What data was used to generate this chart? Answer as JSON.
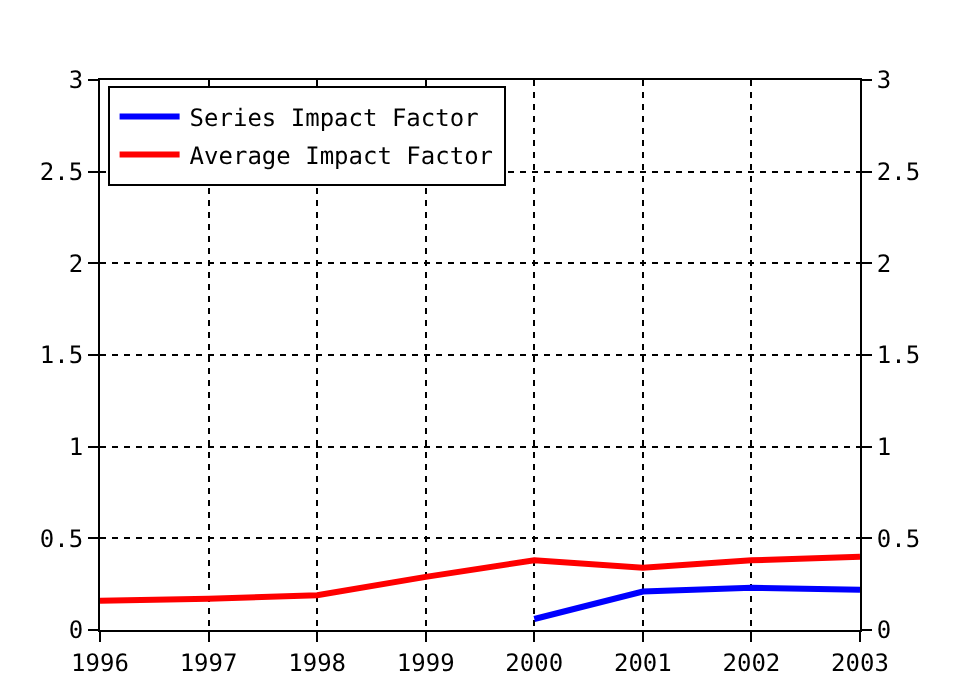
{
  "chart_data": {
    "type": "line",
    "x": [
      1996,
      1997,
      1998,
      1999,
      2000,
      2001,
      2002,
      2003
    ],
    "series": [
      {
        "name": "Series Impact Factor",
        "color": "#0000ff",
        "values": [
          null,
          null,
          null,
          null,
          0.06,
          0.21,
          0.23,
          0.22
        ]
      },
      {
        "name": "Average Impact Factor",
        "color": "#ff0000",
        "values": [
          0.16,
          0.17,
          0.19,
          0.29,
          0.38,
          0.34,
          0.38,
          0.4
        ]
      }
    ],
    "xlim": [
      1996,
      2003
    ],
    "xticks": [
      1996,
      1997,
      1998,
      1999,
      2000,
      2001,
      2002,
      2003
    ],
    "ylim": [
      0,
      3
    ],
    "yticks": [
      0,
      {
        "value": 0.5,
        "label": "0.5"
      },
      1,
      {
        "value": 1.5,
        "label": "1.5"
      },
      2,
      {
        "value": 2.5,
        "label": "2.5"
      },
      3
    ],
    "y2lim": [
      0,
      3
    ],
    "y2ticks": [
      0,
      {
        "value": 0.5,
        "label": "0.5"
      },
      1,
      {
        "value": 1.5,
        "label": "1.5"
      },
      2,
      {
        "value": 2.5,
        "label": "2.5"
      },
      3
    ],
    "grid": true,
    "legend": "top left",
    "line_style": "solid",
    "marker": "none"
  }
}
